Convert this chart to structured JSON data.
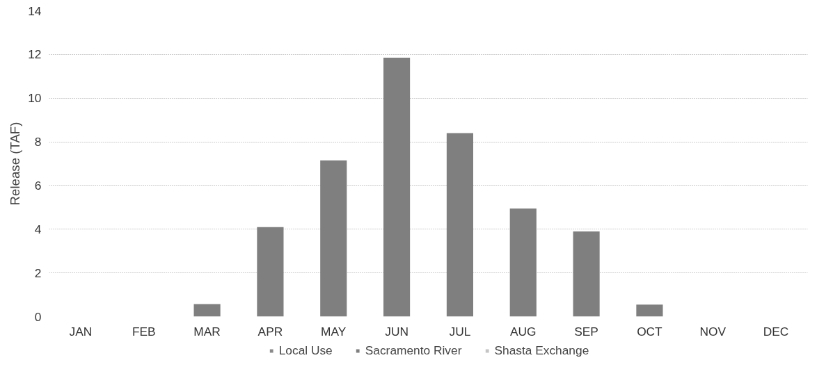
{
  "chart_data": {
    "type": "bar",
    "ylabel": "Release (TAF)",
    "categories": [
      "JAN",
      "FEB",
      "MAR",
      "APR",
      "MAY",
      "JUN",
      "JUL",
      "AUG",
      "SEP",
      "OCT",
      "NOV",
      "DEC"
    ],
    "stacked": true,
    "series": [
      {
        "name": "Local Use",
        "color": "#8a8a8a",
        "values": [
          0,
          0,
          0,
          0,
          0,
          0,
          0,
          0,
          0,
          0,
          0,
          0
        ]
      },
      {
        "name": "Sacramento River",
        "color": "#7f7f7f",
        "values": [
          0,
          0,
          0.57,
          4.1,
          7.15,
          11.85,
          8.4,
          4.95,
          3.9,
          0.55,
          0,
          0
        ]
      },
      {
        "name": "Shasta Exchange",
        "color": "#c4c4c4",
        "values": [
          0,
          0,
          0,
          0,
          0,
          0,
          0,
          0,
          0,
          0,
          0,
          0
        ]
      }
    ],
    "ylim": [
      0,
      14
    ],
    "yticks": [
      0,
      2,
      4,
      6,
      8,
      10,
      12,
      14
    ],
    "grid": "y",
    "legend": "bottom"
  }
}
